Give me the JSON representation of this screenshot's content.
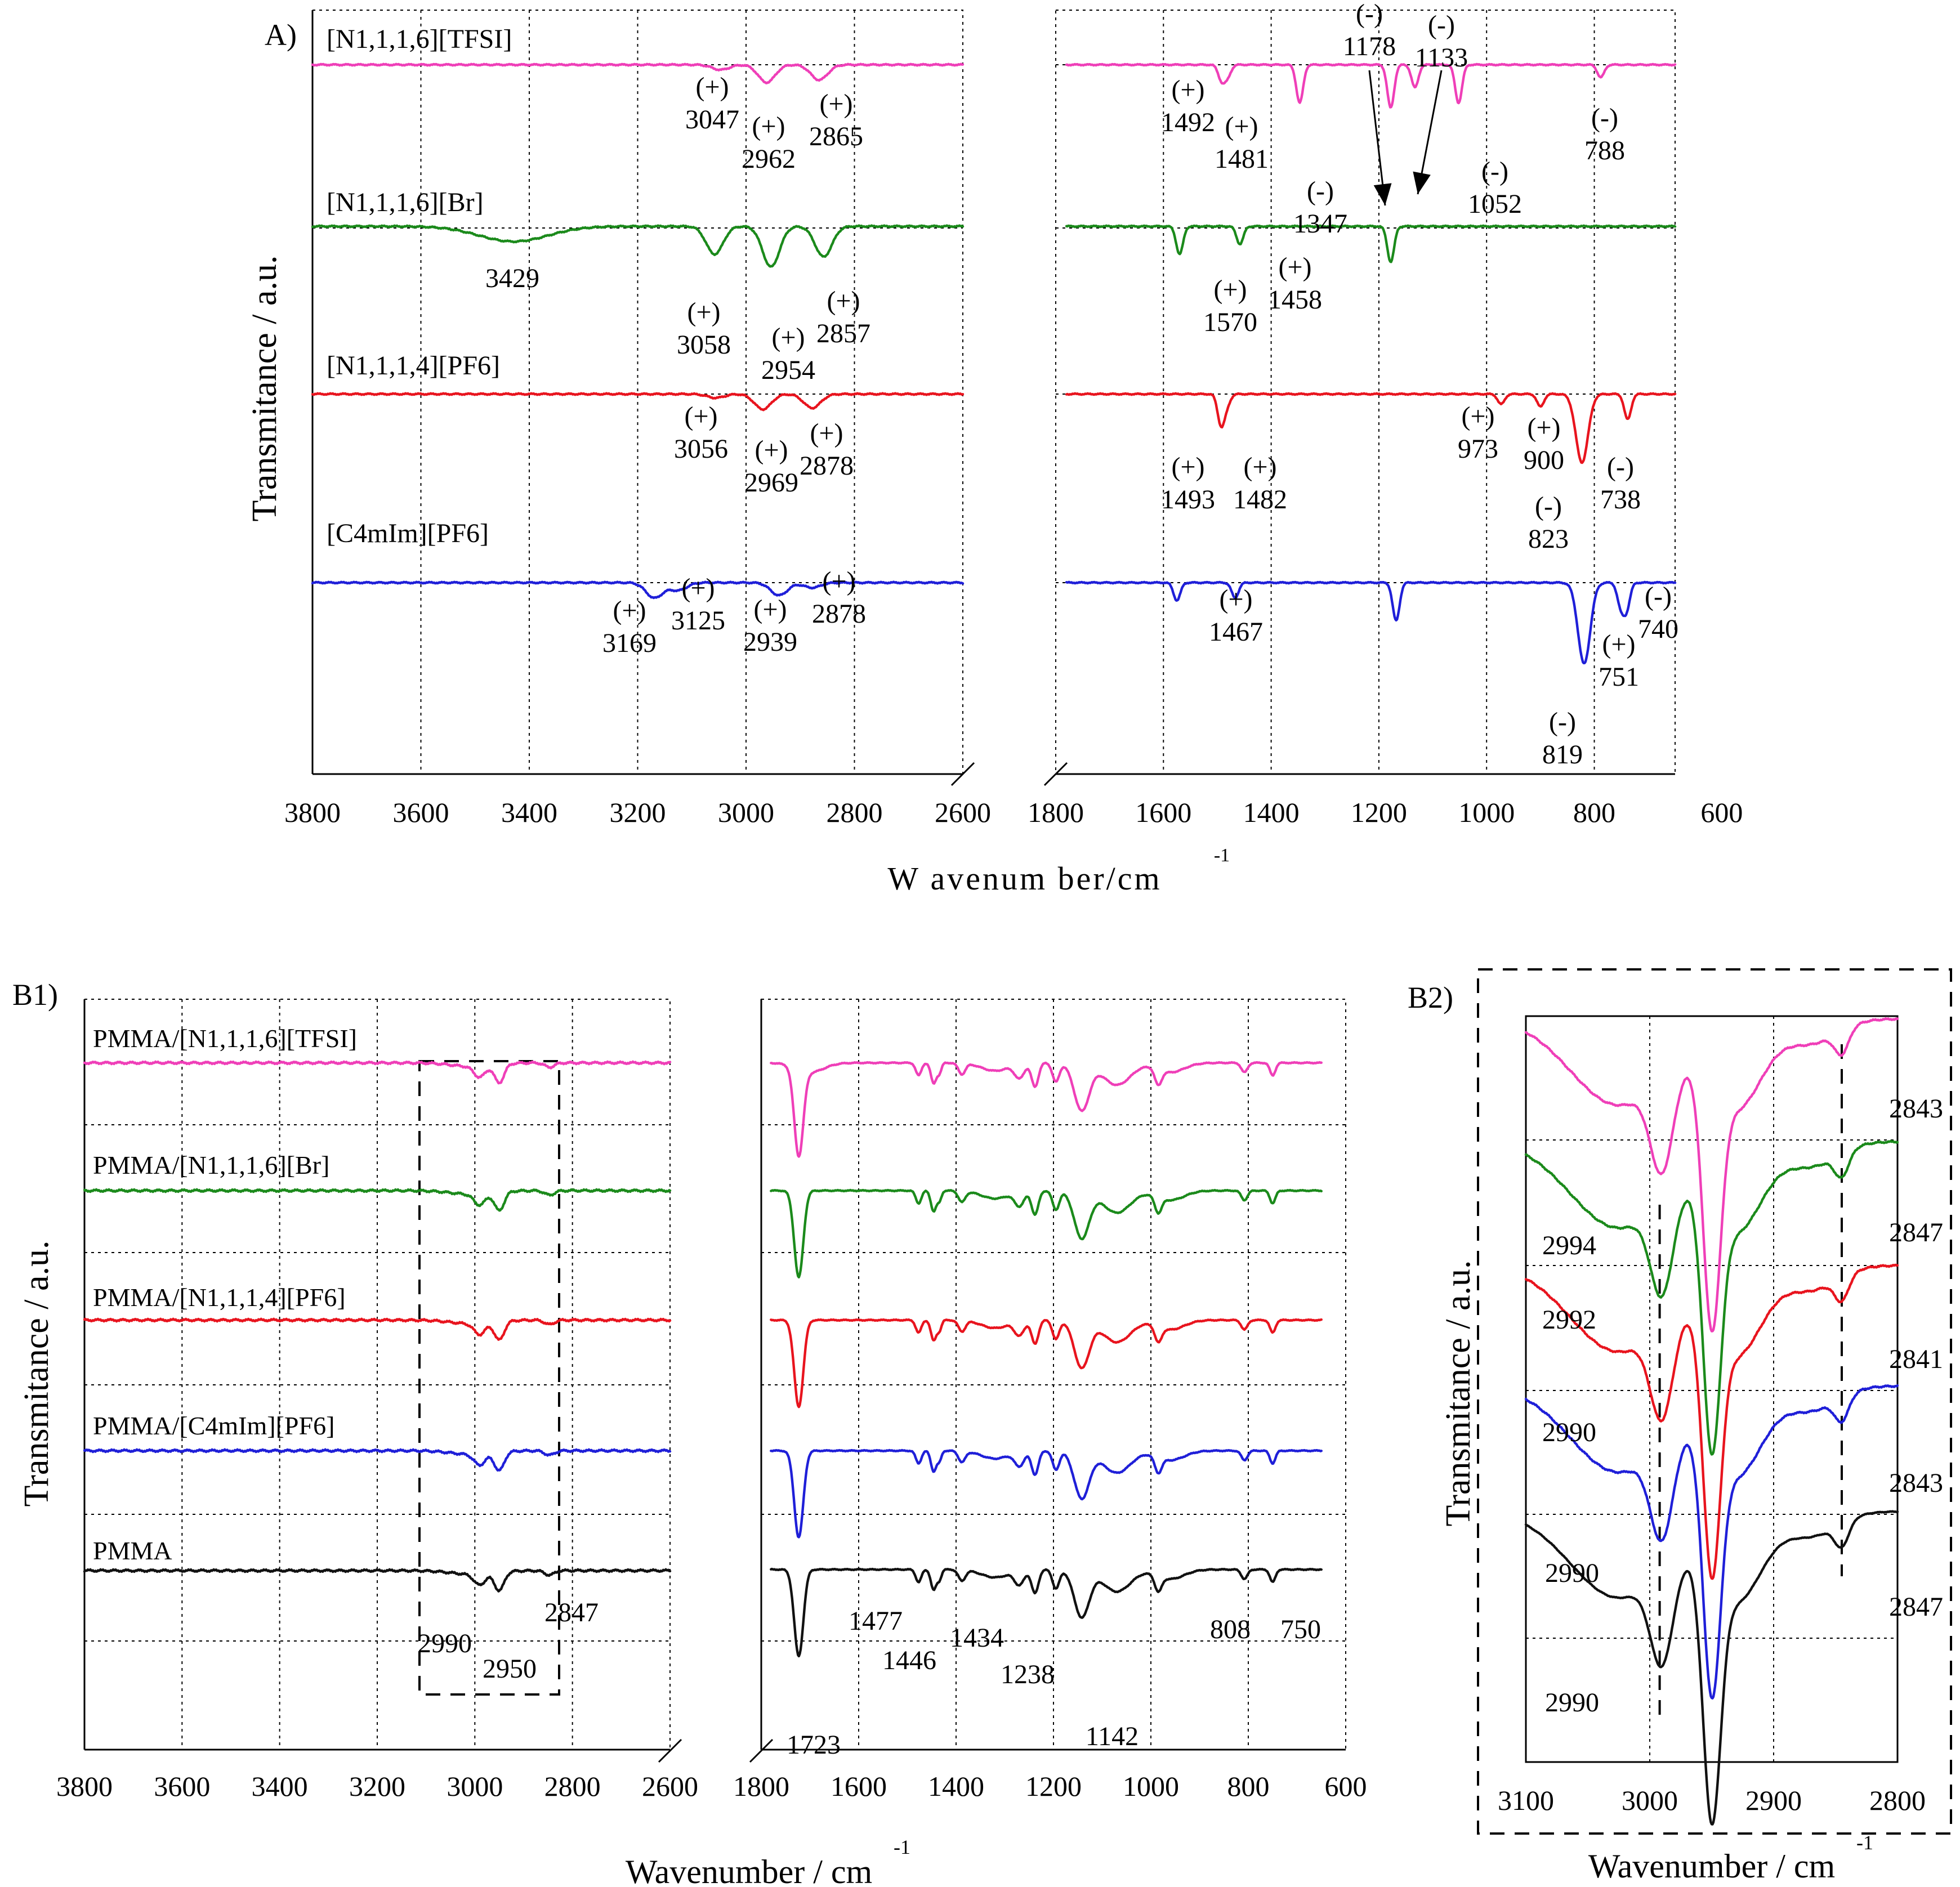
{
  "colors": {
    "pink": "#ef3fb8",
    "green": "#1b8a1b",
    "red": "#e8141e",
    "blue": "#1f1fd8",
    "black": "#111111"
  },
  "chart_data": [
    {
      "type": "line",
      "panel": "A)",
      "xlabel": "W avenum ber/cm",
      "xlabel_superscript": "-1",
      "ylabel": "Transmitance / a.u.",
      "xticks": [
        "3800",
        "3600",
        "3400",
        "3200",
        "3000",
        "2800",
        "2600",
        "1800",
        "1600",
        "1400",
        "1200",
        "1000",
        "800",
        "600"
      ],
      "segments": [
        [
          3800,
          2600
        ],
        [
          1800,
          650
        ]
      ],
      "series": [
        {
          "name": "[N1,1,1,6][TFSI]",
          "color": "pink",
          "peaks": [
            [
              3047,
              0.2
            ],
            [
              2962,
              0.7
            ],
            [
              2865,
              0.6
            ],
            [
              1492,
              0.6
            ],
            [
              1481,
              0.45
            ],
            [
              1347,
              1.5
            ],
            [
              1178,
              1.7
            ],
            [
              1133,
              0.9
            ],
            [
              1052,
              1.5
            ],
            [
              788,
              0.5
            ]
          ],
          "labels": [
            {
              "sign": "(+)",
              "value": "3047"
            },
            {
              "sign": "(+)",
              "value": "2962"
            },
            {
              "sign": "(+)",
              "value": "2865"
            },
            {
              "sign": "(+)",
              "value": "1492"
            },
            {
              "sign": "(+)",
              "value": "1481"
            },
            {
              "sign": "(-)",
              "value": "1347"
            },
            {
              "sign": "(-)",
              "value": "1178"
            },
            {
              "sign": "(-)",
              "value": "1133"
            },
            {
              "sign": "(-)",
              "value": "1052"
            },
            {
              "sign": "(-)",
              "value": "788"
            }
          ]
        },
        {
          "name": "[N1,1,1,6][Br]",
          "color": "green",
          "peaks": [
            [
              3429,
              0.6
            ],
            [
              3058,
              1.1
            ],
            [
              2954,
              1.6
            ],
            [
              2857,
              1.2
            ],
            [
              1570,
              1.1
            ],
            [
              1458,
              0.7
            ],
            [
              1178,
              1.4
            ]
          ],
          "labels": [
            {
              "sign": "",
              "value": "3429"
            },
            {
              "sign": "(+)",
              "value": "3058"
            },
            {
              "sign": "(+)",
              "value": "2954"
            },
            {
              "sign": "(+)",
              "value": "2857"
            },
            {
              "sign": "(+)",
              "value": "1570"
            },
            {
              "sign": "(+)",
              "value": "1458"
            }
          ]
        },
        {
          "name": "[N1,1,1,4][PF6]",
          "color": "red",
          "peaks": [
            [
              3056,
              0.15
            ],
            [
              2969,
              0.6
            ],
            [
              2878,
              0.55
            ],
            [
              1493,
              1.2
            ],
            [
              1482,
              0.4
            ],
            [
              973,
              0.4
            ],
            [
              900,
              0.5
            ],
            [
              823,
              2.7
            ],
            [
              738,
              1.0
            ]
          ],
          "labels": [
            {
              "sign": "(+)",
              "value": "3056"
            },
            {
              "sign": "(+)",
              "value": "2969"
            },
            {
              "sign": "(+)",
              "value": "2878"
            },
            {
              "sign": "(+)",
              "value": "1493"
            },
            {
              "sign": "(+)",
              "value": "1482"
            },
            {
              "sign": "(+)",
              "value": "973"
            },
            {
              "sign": "(+)",
              "value": "900"
            },
            {
              "sign": "(-)",
              "value": "823"
            },
            {
              "sign": "(-)",
              "value": "738"
            }
          ]
        },
        {
          "name": "[C4mIm][PF6]",
          "color": "blue",
          "peaks": [
            [
              3169,
              0.6
            ],
            [
              3125,
              0.3
            ],
            [
              2939,
              0.5
            ],
            [
              2878,
              0.2
            ],
            [
              1575,
              0.7
            ],
            [
              1467,
              0.6
            ],
            [
              1168,
              1.5
            ],
            [
              819,
              3.2
            ],
            [
              751,
              0.9
            ],
            [
              740,
              1.0
            ]
          ],
          "labels": [
            {
              "sign": "(+)",
              "value": "3169"
            },
            {
              "sign": "(+)",
              "value": "3125"
            },
            {
              "sign": "(+)",
              "value": "2939"
            },
            {
              "sign": "(+)",
              "value": "2878"
            },
            {
              "sign": "(+)",
              "value": "1467"
            },
            {
              "sign": "(-)",
              "value": "819"
            },
            {
              "sign": "(+)",
              "value": "751"
            },
            {
              "sign": "(-)",
              "value": "740"
            }
          ]
        }
      ]
    },
    {
      "type": "line",
      "panel": "B1)",
      "xlabel": "Wavenumber / cm",
      "xlabel_superscript": "-1",
      "ylabel": "Transmitance / a.u.",
      "xticks": [
        "3800",
        "3600",
        "3400",
        "3200",
        "3000",
        "2800",
        "2600",
        "1800",
        "1600",
        "1400",
        "1200",
        "1000",
        "800",
        "600"
      ],
      "segments": [
        [
          3800,
          2600
        ],
        [
          1800,
          650
        ]
      ],
      "series": [
        {
          "name": "PMMA/[N1,1,1,6][TFSI]",
          "color": "pink"
        },
        {
          "name": "PMMA/[N1,1,1,6][Br]",
          "color": "green"
        },
        {
          "name": "PMMA/[N1,1,1,4][PF6]",
          "color": "red"
        },
        {
          "name": "PMMA/[C4mIm][PF6]",
          "color": "blue"
        },
        {
          "name": "PMMA",
          "color": "black"
        }
      ],
      "peak_labels": [
        "2990",
        "2950",
        "2847",
        "1723",
        "1477",
        "1446",
        "1434",
        "1238",
        "1142",
        "808",
        "750"
      ]
    },
    {
      "type": "line",
      "panel": "B2)",
      "xlabel": "Wavenumber / cm",
      "xlabel_superscript": "-1",
      "ylabel": "Transmitance / a.u.",
      "xticks": [
        "3100",
        "3000",
        "2900",
        "2800"
      ],
      "xlim": [
        3100,
        2800
      ],
      "series": [
        {
          "name": "PMMA/[N1,1,1,6][TFSI]",
          "color": "pink",
          "labels": [
            "2994",
            "2843"
          ]
        },
        {
          "name": "PMMA/[N1,1,1,6][Br]",
          "color": "green",
          "labels": [
            "2992",
            "2847"
          ]
        },
        {
          "name": "PMMA/[N1,1,1,4][PF6]",
          "color": "red",
          "labels": [
            "2990",
            "2841"
          ]
        },
        {
          "name": "PMMA/[C4mIm][PF6]",
          "color": "blue",
          "labels": [
            "2990",
            "2843"
          ]
        },
        {
          "name": "PMMA",
          "color": "black",
          "labels": [
            "2990",
            "2847"
          ]
        }
      ]
    }
  ]
}
